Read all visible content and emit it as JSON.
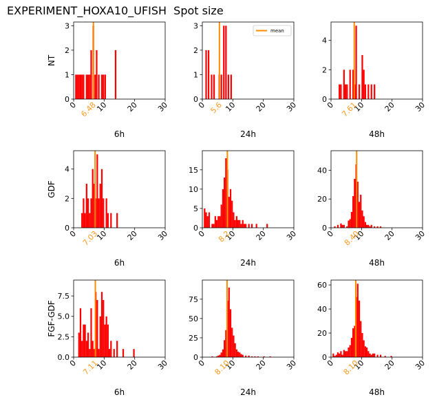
{
  "figure_title": "EXPERIMENT_HOXA10_UFISH  Spot size",
  "chart_data": [
    {
      "type": "bar",
      "row_label": "NT",
      "xlabel": "6h",
      "mean": 6.48,
      "mean_label": "6.48",
      "xlim": [
        0,
        30
      ],
      "ylim": [
        0,
        3.15
      ],
      "yticks": [
        "0",
        "1",
        "2",
        "3"
      ],
      "xticks": [
        "0",
        "10",
        "20",
        "30"
      ],
      "x": [
        0.5,
        1.0,
        1.5,
        2.0,
        2.5,
        3.0,
        4.0,
        4.5,
        5.0,
        5.5,
        6.2,
        6.8,
        7.3,
        8.0,
        9.0,
        9.5,
        10.1,
        13.5
      ],
      "values": [
        1,
        1,
        1,
        1,
        1,
        1,
        1,
        1,
        1,
        2,
        3,
        1,
        2,
        1,
        1,
        1,
        1,
        2
      ]
    },
    {
      "type": "bar",
      "row_label": "",
      "xlabel": "24h",
      "mean": 5.6,
      "mean_label": "5.6",
      "xlim": [
        0,
        30
      ],
      "ylim": [
        0,
        3.15
      ],
      "yticks": [
        "0",
        "1",
        "2",
        "3"
      ],
      "xticks": [
        "0",
        "10",
        "20",
        "30"
      ],
      "legend": "mean",
      "x": [
        1.0,
        1.8,
        2.8,
        3.6,
        5.3,
        6.0,
        6.8,
        7.5,
        8.3,
        9.2
      ],
      "values": [
        2,
        2,
        1,
        1,
        1,
        1,
        3,
        3,
        1,
        1
      ]
    },
    {
      "type": "bar",
      "row_label": "",
      "xlabel": "48h",
      "mean": 7.61,
      "mean_label": "7.61",
      "xlim": [
        0,
        30
      ],
      "ylim": [
        0,
        5.25
      ],
      "yticks": [
        "0",
        "2",
        "4"
      ],
      "xticks": [
        "0",
        "10",
        "20",
        "30"
      ],
      "x": [
        2.5,
        3.0,
        4.0,
        4.5,
        5.0,
        6.0,
        7.0,
        7.5,
        8.0,
        9.0,
        10.0,
        10.5,
        11.0,
        12.0,
        13.0,
        14.0
      ],
      "values": [
        1,
        1,
        2,
        1,
        1,
        2,
        2,
        1,
        5,
        1,
        3,
        2,
        1,
        1,
        1,
        1
      ]
    },
    {
      "type": "bar",
      "row_label": "GDF",
      "xlabel": "6h",
      "mean": 7.03,
      "mean_label": "7.03",
      "xlim": [
        0,
        30
      ],
      "ylim": [
        0,
        5.25
      ],
      "yticks": [
        "0",
        "2",
        "4"
      ],
      "xticks": [
        "0",
        "10",
        "20",
        "30"
      ],
      "x": [
        2.5,
        3.0,
        3.5,
        4.0,
        4.5,
        5.0,
        5.5,
        6.0,
        6.5,
        7.0,
        7.5,
        8.0,
        8.5,
        9.0,
        9.5,
        10.5,
        11.0,
        12.0,
        14.0
      ],
      "values": [
        1,
        2,
        1,
        3,
        2,
        1,
        2,
        4,
        3,
        2,
        5,
        2,
        3,
        4,
        2,
        2,
        1,
        1,
        1
      ]
    },
    {
      "type": "bar",
      "row_label": "",
      "xlabel": "24h",
      "mean": 8.2,
      "mean_label": "8.2",
      "xlim": [
        0,
        30
      ],
      "ylim": [
        0,
        19.95
      ],
      "yticks": [
        "0",
        "5",
        "10",
        "15"
      ],
      "xticks": [
        "0",
        "10",
        "20",
        "30"
      ],
      "x": [
        0.5,
        1.0,
        1.5,
        2.0,
        3.0,
        3.5,
        4.0,
        4.5,
        5.0,
        5.5,
        6.0,
        6.5,
        7.0,
        7.5,
        8.0,
        8.5,
        9.0,
        9.5,
        10.0,
        10.5,
        11.0,
        11.5,
        12.0,
        12.5,
        13.0,
        13.5,
        14.0,
        15.0,
        16.0,
        17.5,
        21.0
      ],
      "values": [
        5,
        4,
        3,
        4,
        1,
        1,
        3,
        2,
        3,
        3,
        6,
        10,
        13,
        18,
        15,
        8,
        10,
        7,
        4,
        2,
        3,
        2,
        2,
        1,
        2,
        1,
        1,
        1,
        1,
        1,
        1
      ]
    },
    {
      "type": "bar",
      "row_label": "",
      "xlabel": "48h",
      "mean": 8.4,
      "mean_label": "8.40",
      "xlim": [
        0,
        30
      ],
      "ylim": [
        0,
        53.55
      ],
      "yticks": [
        "0",
        "20",
        "40"
      ],
      "xticks": [
        "0",
        "10",
        "20",
        "30"
      ],
      "x": [
        1.0,
        2.0,
        3.0,
        3.5,
        4.0,
        5.0,
        5.5,
        6.0,
        6.5,
        7.0,
        7.5,
        8.0,
        8.5,
        9.0,
        9.5,
        10.0,
        10.5,
        11.0,
        11.5,
        12.0,
        12.5,
        13.0,
        14.0,
        15.0,
        16.0
      ],
      "values": [
        1,
        2,
        3,
        2,
        2,
        1,
        5,
        6,
        11,
        22,
        34,
        44,
        32,
        18,
        23,
        12,
        8,
        4,
        2,
        2,
        1,
        2,
        1,
        1,
        1
      ]
    },
    {
      "type": "bar",
      "row_label": "FGF-GDF",
      "xlabel": "6h",
      "mean": 7.11,
      "mean_label": "7.11",
      "xlim": [
        0,
        30
      ],
      "ylim": [
        0,
        9.45
      ],
      "yticks": [
        "0.0",
        "2.5",
        "5.0",
        "7.5"
      ],
      "xticks": [
        "0",
        "10",
        "20",
        "30"
      ],
      "x": [
        1.5,
        2.0,
        2.5,
        3.0,
        3.5,
        4.0,
        4.5,
        5.0,
        5.5,
        6.0,
        6.5,
        7.0,
        7.5,
        8.0,
        8.5,
        9.0,
        9.5,
        10.0,
        10.5,
        11.0,
        11.5,
        12.0,
        13.0,
        14.0,
        16.0,
        19.5
      ],
      "values": [
        3,
        6,
        2,
        4,
        4,
        2,
        3,
        1,
        6,
        2,
        1,
        8,
        7,
        1,
        5,
        8,
        7,
        4,
        5,
        4,
        1,
        2,
        1,
        2,
        1,
        1
      ]
    },
    {
      "type": "bar",
      "row_label": "",
      "xlabel": "24h",
      "mean": 8.1,
      "mean_label": "8.10",
      "xlim": [
        0,
        30
      ],
      "ylim": [
        0,
        99.75
      ],
      "yticks": [
        "0",
        "25",
        "50",
        "75"
      ],
      "xticks": [
        "0",
        "10",
        "20",
        "30"
      ],
      "x": [
        3.0,
        4.5,
        5.0,
        5.5,
        6.0,
        6.5,
        7.0,
        7.5,
        8.0,
        8.5,
        9.0,
        9.5,
        10.0,
        10.5,
        11.0,
        11.5,
        12.0,
        12.5,
        13.0,
        14.0,
        15.0,
        16.0,
        17.0,
        18.0,
        20.0,
        22.0
      ],
      "values": [
        1,
        1,
        2,
        3,
        6,
        10,
        22,
        35,
        73,
        90,
        62,
        38,
        28,
        18,
        10,
        7,
        6,
        4,
        3,
        2,
        2,
        1,
        1,
        1,
        1,
        1
      ]
    },
    {
      "type": "bar",
      "row_label": "",
      "xlabel": "48h",
      "mean": 8.1,
      "mean_label": "8.10",
      "xlim": [
        0,
        30
      ],
      "ylim": [
        0,
        64.05
      ],
      "yticks": [
        "0",
        "20",
        "40",
        "60"
      ],
      "xticks": [
        "0",
        "10",
        "20",
        "30"
      ],
      "x": [
        0.5,
        1.0,
        1.5,
        2.0,
        2.5,
        3.0,
        3.5,
        4.0,
        4.5,
        5.0,
        5.5,
        6.0,
        6.5,
        7.0,
        7.5,
        8.0,
        8.5,
        9.0,
        9.5,
        10.0,
        10.5,
        11.0,
        11.5,
        12.0,
        12.5,
        13.0,
        13.5,
        14.0,
        15.0,
        16.0,
        17.5,
        19.5
      ],
      "values": [
        3,
        1,
        2,
        4,
        3,
        5,
        2,
        6,
        5,
        5,
        8,
        10,
        16,
        24,
        26,
        50,
        61,
        47,
        30,
        20,
        14,
        9,
        8,
        5,
        3,
        2,
        3,
        3,
        2,
        2,
        1,
        1
      ]
    }
  ]
}
